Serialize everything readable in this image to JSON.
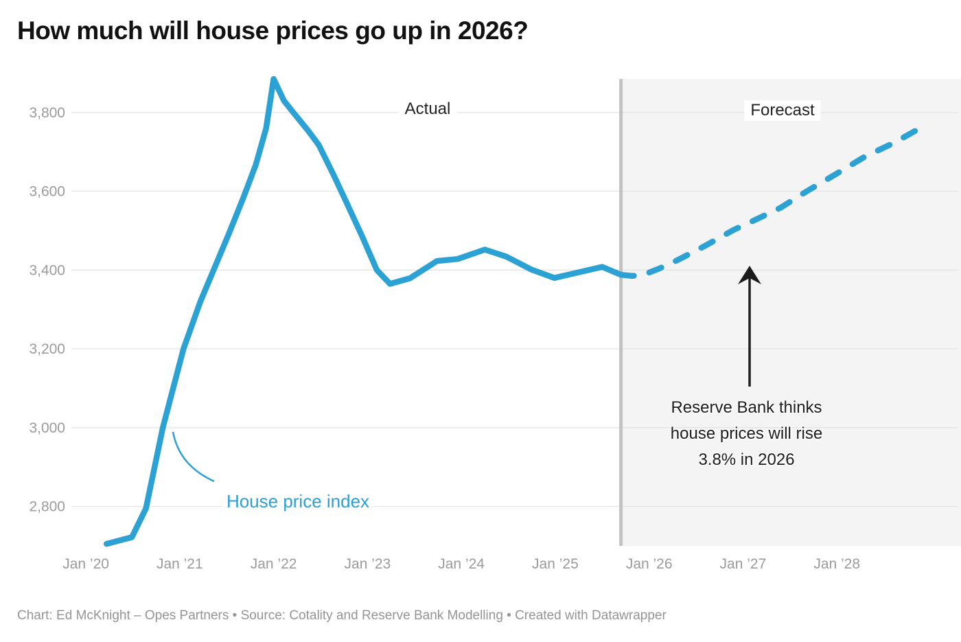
{
  "title": "How much will house prices go up in 2026?",
  "footer": "Chart: Ed McKnight – Opes Partners • Source: Cotality and Reserve Bank Modelling • Created with Datawrapper",
  "labels": {
    "actual": "Actual",
    "forecast": "Forecast",
    "series": "House price index"
  },
  "annotation": {
    "line1": "Reserve Bank thinks",
    "line2": "house prices will rise",
    "line3": "3.8% in 2026"
  },
  "colors": {
    "line": "#2BA2D3",
    "series_label": "#2D9FD4",
    "gridline": "#e4e4e4",
    "forecast_region": "#f4f4f4",
    "divider": "#c2c2c2",
    "axis_text": "#9b9b9b",
    "annotation_arrow": "#1c1c1c",
    "title_text": "#111111",
    "footer_text": "#949494"
  },
  "chart_data": {
    "type": "line",
    "title": "How much will house prices go up in 2026?",
    "xlabel": "",
    "ylabel": "House price index",
    "grid": true,
    "legend_position": "none",
    "xlim": [
      2019.846,
      2029.322
    ],
    "ylim": [
      2700,
      3885
    ],
    "divider_year": 2025.7,
    "forecast_region": {
      "from_year": 2025.7,
      "to_year": 2029.322
    },
    "y_ticks": [
      {
        "value": 3800,
        "label": "3,800"
      },
      {
        "value": 3600,
        "label": "3,600"
      },
      {
        "value": 3400,
        "label": "3,400"
      },
      {
        "value": 3200,
        "label": "3,200"
      },
      {
        "value": 3000,
        "label": "3,000"
      },
      {
        "value": 2800,
        "label": "2,800"
      }
    ],
    "x_ticks": [
      {
        "year": 2020,
        "label": "Jan ’20"
      },
      {
        "year": 2021,
        "label": "Jan ’21"
      },
      {
        "year": 2022,
        "label": "Jan ’22"
      },
      {
        "year": 2023,
        "label": "Jan ’23"
      },
      {
        "year": 2024,
        "label": "Jan ’24"
      },
      {
        "year": 2025,
        "label": "Jan ’25"
      },
      {
        "year": 2026,
        "label": "Jan ’26"
      },
      {
        "year": 2027,
        "label": "Jan ’27"
      },
      {
        "year": 2028,
        "label": "Jan ’28"
      }
    ],
    "series": [
      {
        "name": "House price index (actual)",
        "style": "solid",
        "points": [
          [
            2020.22,
            2705
          ],
          [
            2020.49,
            2722
          ],
          [
            2020.64,
            2795
          ],
          [
            2020.82,
            3000
          ],
          [
            2021.04,
            3200
          ],
          [
            2021.22,
            3320
          ],
          [
            2021.37,
            3405
          ],
          [
            2021.53,
            3496
          ],
          [
            2021.68,
            3585
          ],
          [
            2021.81,
            3667
          ],
          [
            2021.92,
            3760
          ],
          [
            2022.0,
            3885
          ],
          [
            2022.11,
            3830
          ],
          [
            2022.21,
            3800
          ],
          [
            2022.37,
            3753
          ],
          [
            2022.48,
            3718
          ],
          [
            2022.64,
            3641
          ],
          [
            2022.76,
            3580
          ],
          [
            2022.94,
            3487
          ],
          [
            2023.1,
            3400
          ],
          [
            2023.24,
            3365
          ],
          [
            2023.45,
            3379
          ],
          [
            2023.74,
            3423
          ],
          [
            2023.96,
            3428
          ],
          [
            2024.25,
            3452
          ],
          [
            2024.48,
            3434
          ],
          [
            2024.74,
            3402
          ],
          [
            2024.99,
            3380
          ],
          [
            2025.3,
            3397
          ],
          [
            2025.5,
            3408
          ],
          [
            2025.7,
            3388
          ]
        ]
      },
      {
        "name": "Reserve Bank forecast",
        "style": "dashed",
        "points": [
          [
            2025.7,
            3388
          ],
          [
            2025.82,
            3385
          ],
          [
            2025.95,
            3389
          ],
          [
            2026.1,
            3403
          ],
          [
            2026.3,
            3425
          ],
          [
            2026.6,
            3462
          ],
          [
            2026.9,
            3502
          ],
          [
            2027.1,
            3524
          ],
          [
            2027.4,
            3558
          ],
          [
            2027.68,
            3600
          ],
          [
            2028.0,
            3645
          ],
          [
            2028.3,
            3688
          ],
          [
            2028.6,
            3722
          ],
          [
            2028.9,
            3762
          ]
        ]
      }
    ]
  }
}
